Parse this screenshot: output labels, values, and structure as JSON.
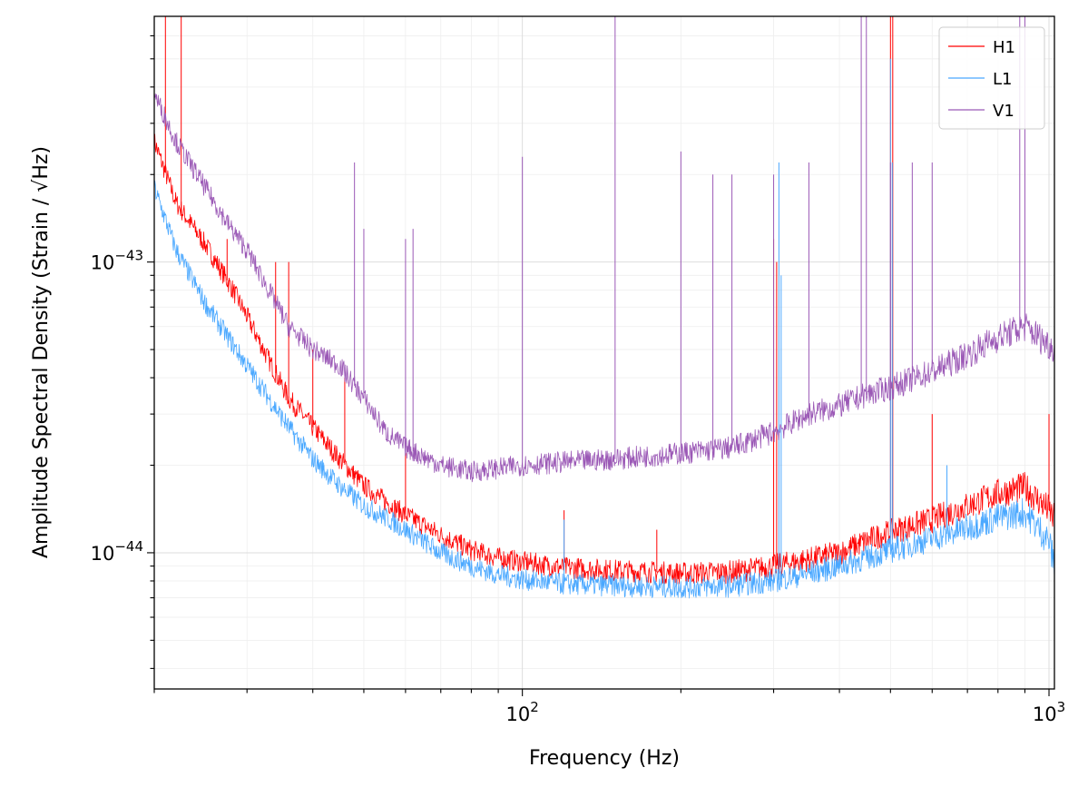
{
  "chart_data": {
    "type": "line",
    "xlabel": "Frequency (Hz)",
    "ylabel": "Amplitude Spectral Density (Strain / √Hz)",
    "xscale": "log",
    "yscale": "log",
    "xlim": [
      20,
      1024
    ],
    "ylim": [
      3.4e-45,
      7e-43
    ],
    "grid": true,
    "legend_position": "top-right",
    "x_ticks": [
      {
        "value": 100,
        "base": "10",
        "exp": "2"
      },
      {
        "value": 1000,
        "base": "10",
        "exp": "3"
      }
    ],
    "y_ticks": [
      {
        "value": 1e-44,
        "base": "10",
        "exp": "−44"
      },
      {
        "value": 1e-43,
        "base": "10",
        "exp": "−43"
      }
    ],
    "series": [
      {
        "name": "H1",
        "color": "#ff0000",
        "points": [
          [
            20,
            2.6e-43
          ],
          [
            22,
            1.6e-43
          ],
          [
            25,
            1.15e-43
          ],
          [
            28,
            8.2e-44
          ],
          [
            30,
            6.5e-44
          ],
          [
            33,
            4.6e-44
          ],
          [
            36,
            3.4e-44
          ],
          [
            40,
            2.7e-44
          ],
          [
            45,
            2.1e-44
          ],
          [
            50,
            1.7e-44
          ],
          [
            55,
            1.5e-44
          ],
          [
            60,
            1.35e-44
          ],
          [
            70,
            1.15e-44
          ],
          [
            80,
            1.02e-44
          ],
          [
            90,
            9.6e-45
          ],
          [
            100,
            9.3e-45
          ],
          [
            120,
            8.9e-45
          ],
          [
            150,
            8.7e-45
          ],
          [
            200,
            8.5e-45
          ],
          [
            250,
            8.6e-45
          ],
          [
            300,
            9e-45
          ],
          [
            350,
            9.5e-45
          ],
          [
            400,
            1e-44
          ],
          [
            450,
            1.1e-44
          ],
          [
            500,
            1.18e-44
          ],
          [
            600,
            1.3e-44
          ],
          [
            700,
            1.45e-44
          ],
          [
            800,
            1.6e-44
          ],
          [
            900,
            1.68e-44
          ],
          [
            1000,
            1.4e-44
          ],
          [
            1024,
            1.3e-44
          ]
        ],
        "spikes": [
          [
            21,
            7e-43
          ],
          [
            22.5,
            7e-43
          ],
          [
            27.5,
            1.2e-43
          ],
          [
            34,
            1e-43
          ],
          [
            36,
            1e-43
          ],
          [
            40,
            5e-44
          ],
          [
            46,
            4e-44
          ],
          [
            60,
            2.2e-44
          ],
          [
            120,
            1.4e-44
          ],
          [
            180,
            1.2e-44
          ],
          [
            300,
            1.2e-43
          ],
          [
            304,
            1e-43
          ],
          [
            500,
            7e-43
          ],
          [
            505,
            7e-43
          ],
          [
            600,
            3e-44
          ],
          [
            1000,
            3e-44
          ]
        ]
      },
      {
        "name": "L1",
        "color": "#4aa8ff",
        "points": [
          [
            20,
            1.8e-43
          ],
          [
            22,
            1.1e-43
          ],
          [
            25,
            7.2e-44
          ],
          [
            28,
            5.3e-44
          ],
          [
            30,
            4.4e-44
          ],
          [
            33,
            3.4e-44
          ],
          [
            36,
            2.7e-44
          ],
          [
            40,
            2.1e-44
          ],
          [
            45,
            1.7e-44
          ],
          [
            50,
            1.45e-44
          ],
          [
            55,
            1.32e-44
          ],
          [
            60,
            1.2e-44
          ],
          [
            70,
            1e-44
          ],
          [
            80,
            9e-45
          ],
          [
            90,
            8.4e-45
          ],
          [
            100,
            8.1e-45
          ],
          [
            120,
            7.8e-45
          ],
          [
            150,
            7.7e-45
          ],
          [
            200,
            7.6e-45
          ],
          [
            250,
            7.7e-45
          ],
          [
            300,
            8e-45
          ],
          [
            350,
            8.5e-45
          ],
          [
            400,
            9e-45
          ],
          [
            450,
            9.6e-45
          ],
          [
            500,
            1.02e-44
          ],
          [
            600,
            1.12e-44
          ],
          [
            700,
            1.22e-44
          ],
          [
            800,
            1.32e-44
          ],
          [
            900,
            1.38e-44
          ],
          [
            1000,
            1.1e-44
          ],
          [
            1024,
            9e-45
          ]
        ],
        "spikes": [
          [
            42,
            2e-44
          ],
          [
            120,
            1.3e-44
          ],
          [
            307,
            2.2e-43
          ],
          [
            310,
            9e-44
          ],
          [
            500,
            5e-43
          ],
          [
            504,
            2.2e-43
          ],
          [
            640,
            2e-44
          ]
        ]
      },
      {
        "name": "V1",
        "color": "#9b59b6",
        "points": [
          [
            20,
            3.8e-43
          ],
          [
            22,
            2.6e-43
          ],
          [
            25,
            1.8e-43
          ],
          [
            28,
            1.3e-43
          ],
          [
            30,
            1.1e-43
          ],
          [
            33,
            8e-44
          ],
          [
            36,
            6e-44
          ],
          [
            40,
            5e-44
          ],
          [
            45,
            4.4e-44
          ],
          [
            50,
            3.4e-44
          ],
          [
            55,
            2.6e-44
          ],
          [
            60,
            2.3e-44
          ],
          [
            70,
            2e-44
          ],
          [
            80,
            1.9e-44
          ],
          [
            90,
            1.95e-44
          ],
          [
            100,
            2e-44
          ],
          [
            120,
            2.05e-44
          ],
          [
            150,
            2.1e-44
          ],
          [
            200,
            2.2e-44
          ],
          [
            250,
            2.3e-44
          ],
          [
            300,
            2.6e-44
          ],
          [
            350,
            3e-44
          ],
          [
            400,
            3.2e-44
          ],
          [
            450,
            3.5e-44
          ],
          [
            500,
            3.7e-44
          ],
          [
            600,
            4.2e-44
          ],
          [
            700,
            4.8e-44
          ],
          [
            800,
            5.5e-44
          ],
          [
            900,
            6e-44
          ],
          [
            1000,
            5.2e-44
          ],
          [
            1024,
            5e-44
          ]
        ],
        "spikes": [
          [
            48,
            2.2e-43
          ],
          [
            50,
            1.3e-43
          ],
          [
            60,
            1.2e-43
          ],
          [
            62,
            1.3e-43
          ],
          [
            100,
            2.3e-43
          ],
          [
            150,
            7e-43
          ],
          [
            200,
            2.4e-43
          ],
          [
            230,
            2e-43
          ],
          [
            250,
            2e-43
          ],
          [
            300,
            2e-43
          ],
          [
            350,
            2.2e-43
          ],
          [
            440,
            7e-43
          ],
          [
            450,
            7e-43
          ],
          [
            500,
            2.2e-43
          ],
          [
            550,
            2.2e-43
          ],
          [
            600,
            2.2e-43
          ],
          [
            880,
            7e-43
          ],
          [
            900,
            7e-43
          ]
        ]
      }
    ]
  }
}
